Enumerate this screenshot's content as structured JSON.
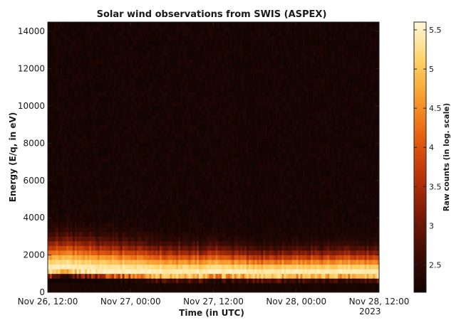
{
  "chart_data": {
    "type": "heatmap",
    "title": "Solar wind observations from SWIS (ASPEX)",
    "xlabel": "Time (in UTC)",
    "ylabel": "Energy (E/q, in eV)",
    "x_ticks": [
      {
        "label": "Nov 26, 12:00",
        "sublabel": "",
        "hours": 0
      },
      {
        "label": "Nov 27, 00:00",
        "sublabel": "",
        "hours": 12
      },
      {
        "label": "Nov 27, 12:00",
        "sublabel": "",
        "hours": 24
      },
      {
        "label": "Nov 28, 00:00",
        "sublabel": "",
        "hours": 36
      },
      {
        "label": "Nov 28, 12:00",
        "sublabel": "2023",
        "hours": 48
      }
    ],
    "x_range_hours": [
      0,
      48
    ],
    "y_ticks": [
      0,
      2000,
      4000,
      6000,
      8000,
      10000,
      12000,
      14000
    ],
    "ylim": [
      0,
      14500
    ],
    "colorbar": {
      "label": "Raw counts (in log. scale)",
      "ticks": [
        2.5,
        3,
        3.5,
        4,
        4.5,
        5,
        5.5
      ],
      "range": [
        2.15,
        5.6
      ],
      "colors": [
        "#120402",
        "#3d0c05",
        "#7a1b08",
        "#b8340a",
        "#e35f10",
        "#f79a2c",
        "#fdd268",
        "#fff7d8"
      ]
    },
    "profile": {
      "peak_energy_ev": [
        1150,
        1200,
        1150,
        1100,
        1050,
        1000,
        950,
        950,
        1000,
        1000,
        950,
        950,
        1000,
        950,
        1000,
        1000,
        950,
        1000
      ],
      "peak_energy_times_hours": [
        0,
        3,
        6,
        9,
        12,
        15,
        18,
        21,
        24,
        27,
        30,
        33,
        36,
        39,
        42,
        45,
        48,
        48
      ],
      "max_log_counts": 5.5,
      "background_log_counts": 2.2
    }
  }
}
